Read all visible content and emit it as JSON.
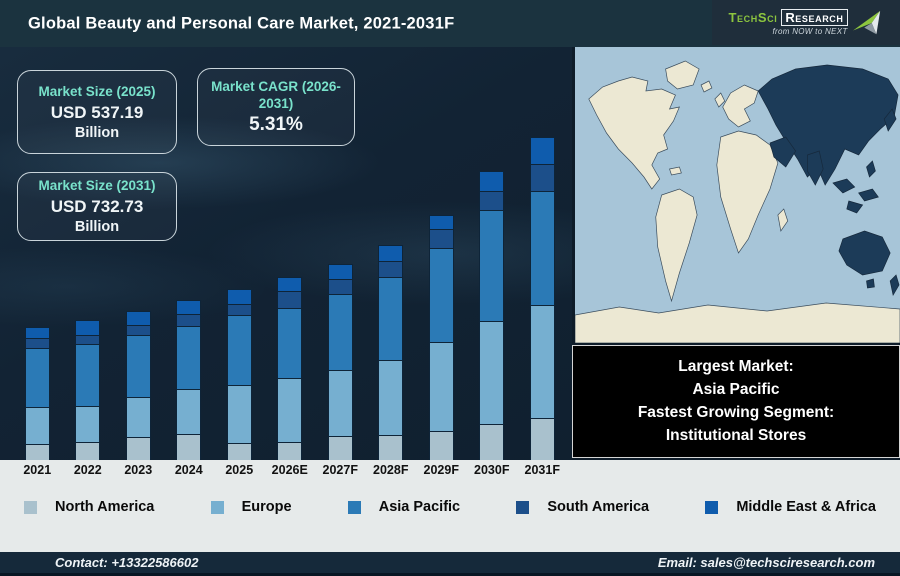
{
  "header": {
    "title": "Global Beauty and Personal Care Market, 2021-2031F",
    "logo": {
      "brand_primary": "TechSci",
      "brand_secondary": "Research",
      "tagline": "from NOW to NEXT",
      "brand_green": "#8dc63f"
    }
  },
  "stats": [
    {
      "label": "Market Size (2025)",
      "value": "USD 537.19",
      "unit": "Billion"
    },
    {
      "label": "Market CAGR (2026-2031)",
      "value": "5.31%",
      "unit": ""
    },
    {
      "label": "Market Size (2031)",
      "value": "USD 732.73",
      "unit": "Billion"
    }
  ],
  "highlight_box": {
    "lines": [
      "Largest Market:",
      "Asia Pacific",
      "Fastest Growing Segment:",
      "Institutional Stores"
    ]
  },
  "map": {
    "colors": {
      "ocean": "#a7c5d8",
      "land": "#ece8d3",
      "asia_pacific_highlight": "#1c3b58"
    },
    "highlighted_region": "Asia Pacific"
  },
  "footer": {
    "contact": "Contact: +13322586602",
    "email": "Email: sales@techsciresearch.com"
  },
  "chart_data": {
    "type": "bar",
    "stacked": true,
    "title": "Global Beauty and Personal Care Market, 2021-2031F",
    "categories": [
      "2021",
      "2022",
      "2023",
      "2024",
      "2025",
      "2026E",
      "2027F",
      "2028F",
      "2029F",
      "2030F",
      "2031F"
    ],
    "series": [
      {
        "name": "North America",
        "color": "#a9c1cd",
        "values": [
          16,
          18,
          23,
          26,
          17,
          18,
          24,
          25,
          29,
          36,
          42
        ]
      },
      {
        "name": "Europe",
        "color": "#76afd0",
        "values": [
          37,
          36,
          40,
          45,
          58,
          64,
          66,
          75,
          89,
          103,
          113
        ]
      },
      {
        "name": "Asia Pacific",
        "color": "#2b7ab6",
        "values": [
          59,
          62,
          62,
          63,
          70,
          70,
          76,
          83,
          94,
          111,
          114
        ]
      },
      {
        "name": "South America",
        "color": "#1c4f8a",
        "values": [
          10,
          9,
          10,
          12,
          11,
          17,
          15,
          16,
          19,
          19,
          27
        ]
      },
      {
        "name": "Middle East & Africa",
        "color": "#0f5cad",
        "values": [
          11,
          15,
          14,
          14,
          15,
          14,
          15,
          16,
          14,
          20,
          27
        ]
      }
    ],
    "unit": "relative stacked height in px (no value axis shown; chart is illustrative)",
    "value_axis_visible": false,
    "legend_position": "bottom",
    "grid": false,
    "annotations": {
      "market_size_2025_usd_billion": 537.19,
      "market_cagr_2026_2031_percent": 5.31,
      "market_size_2031_usd_billion": 732.73,
      "largest_market": "Asia Pacific",
      "fastest_growing_segment": "Institutional Stores"
    }
  }
}
